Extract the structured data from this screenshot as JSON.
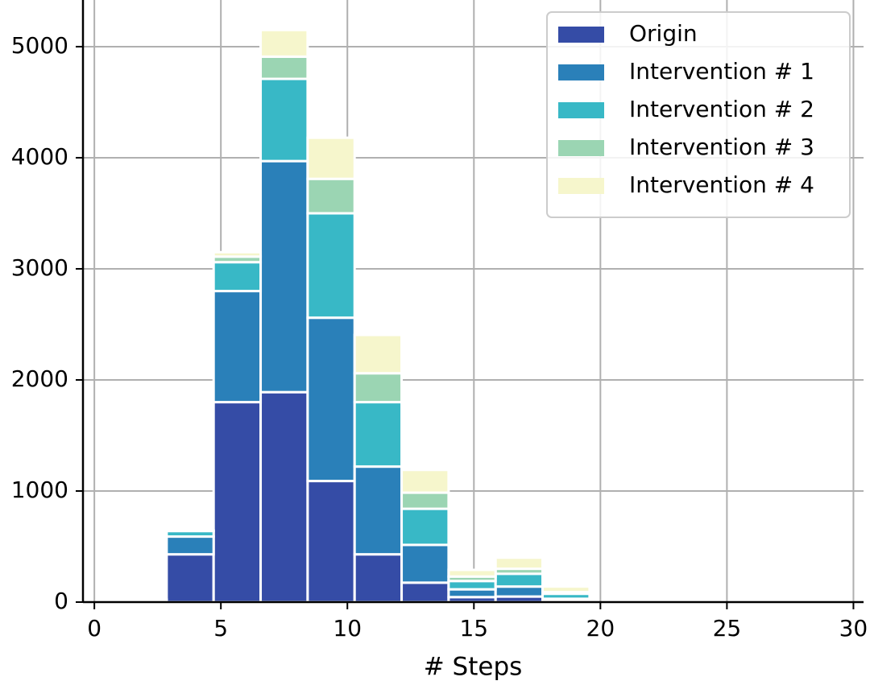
{
  "chart_data": {
    "type": "histogram",
    "stacked": true,
    "x_label": "# Steps",
    "bins": [
      1,
      2.857,
      4.714,
      6.571,
      8.429,
      10.286,
      12.143,
      14,
      15.857,
      17.714,
      19.571,
      21.429,
      23.286,
      25.143,
      27
    ],
    "series": [
      {
        "name": "Origin",
        "color": "#354ca6",
        "values": [
          15,
          430,
          1800,
          1890,
          1090,
          430,
          175,
          45,
          50,
          15,
          0,
          0,
          0,
          0
        ]
      },
      {
        "name": "Intervention # 1",
        "color": "#2a80b9",
        "values": [
          3,
          160,
          1000,
          2080,
          1470,
          790,
          340,
          70,
          90,
          15,
          0,
          0,
          0,
          0
        ]
      },
      {
        "name": "Intervention # 2",
        "color": "#38b8c6",
        "values": [
          2,
          50,
          260,
          740,
          940,
          580,
          325,
          75,
          115,
          45,
          0,
          0,
          0,
          0
        ]
      },
      {
        "name": "Intervention # 3",
        "color": "#9bd5b3",
        "values": [
          1,
          0,
          50,
          200,
          310,
          260,
          145,
          40,
          45,
          15,
          0,
          0,
          0,
          0
        ]
      },
      {
        "name": "Intervention # 4",
        "color": "#f6f6cc",
        "values": [
          1,
          5,
          40,
          240,
          370,
          345,
          205,
          60,
          100,
          50,
          0,
          0,
          0,
          0
        ]
      }
    ],
    "xlim": [
      -0.45,
      30.4
    ],
    "ylim": [
      0,
      5420
    ],
    "xticks": [
      0,
      5,
      10,
      15,
      20,
      25,
      30
    ],
    "yticks": [
      0,
      1000,
      2000,
      3000,
      4000,
      5000
    ],
    "grid": true,
    "legend": "upper right"
  }
}
